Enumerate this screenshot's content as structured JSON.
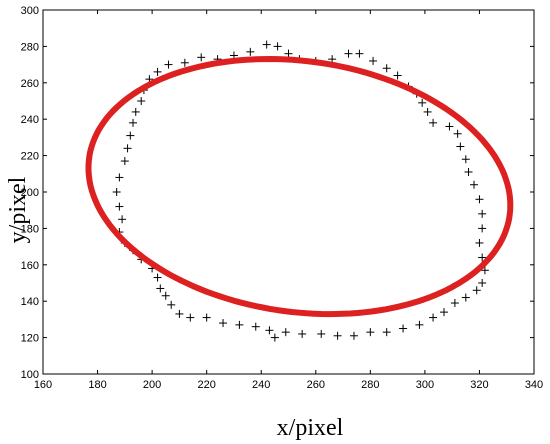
{
  "chart_data": {
    "type": "scatter",
    "title": "",
    "xlabel": "x/pixel",
    "ylabel": "y/pixel",
    "xlim": [
      160,
      340
    ],
    "ylim": [
      100,
      300
    ],
    "xticks": [
      160,
      180,
      200,
      220,
      240,
      260,
      280,
      300,
      320,
      340
    ],
    "yticks": [
      100,
      120,
      140,
      160,
      180,
      200,
      220,
      240,
      260,
      280,
      300
    ],
    "grid": false,
    "series": [
      {
        "marker": "+",
        "color": "#000000",
        "points": [
          [
            188,
            208
          ],
          [
            187,
            200
          ],
          [
            188,
            192
          ],
          [
            189,
            185
          ],
          [
            188,
            178
          ],
          [
            190,
            172
          ],
          [
            193,
            168
          ],
          [
            196,
            163
          ],
          [
            200,
            158
          ],
          [
            202,
            153
          ],
          [
            203,
            147
          ],
          [
            205,
            143
          ],
          [
            207,
            138
          ],
          [
            210,
            133
          ],
          [
            214,
            131
          ],
          [
            220,
            131
          ],
          [
            226,
            128
          ],
          [
            232,
            127
          ],
          [
            238,
            126
          ],
          [
            243,
            124
          ],
          [
            245,
            120
          ],
          [
            249,
            123
          ],
          [
            255,
            122
          ],
          [
            262,
            122
          ],
          [
            268,
            121
          ],
          [
            274,
            121
          ],
          [
            280,
            123
          ],
          [
            286,
            123
          ],
          [
            292,
            125
          ],
          [
            298,
            127
          ],
          [
            303,
            131
          ],
          [
            307,
            134
          ],
          [
            311,
            139
          ],
          [
            315,
            142
          ],
          [
            319,
            146
          ],
          [
            321,
            150
          ],
          [
            322,
            157
          ],
          [
            321,
            164
          ],
          [
            320,
            172
          ],
          [
            321,
            180
          ],
          [
            321,
            188
          ],
          [
            320,
            196
          ],
          [
            318,
            204
          ],
          [
            316,
            211
          ],
          [
            315,
            218
          ],
          [
            313,
            225
          ],
          [
            312,
            232
          ],
          [
            309,
            236
          ],
          [
            303,
            238
          ],
          [
            301,
            244
          ],
          [
            299,
            249
          ],
          [
            297,
            254
          ],
          [
            294,
            258
          ],
          [
            290,
            264
          ],
          [
            286,
            268
          ],
          [
            281,
            272
          ],
          [
            276,
            276
          ],
          [
            272,
            276
          ],
          [
            266,
            273
          ],
          [
            260,
            272
          ],
          [
            254,
            273
          ],
          [
            250,
            276
          ],
          [
            246,
            280
          ],
          [
            242,
            281
          ],
          [
            236,
            277
          ],
          [
            230,
            275
          ],
          [
            224,
            273
          ],
          [
            218,
            274
          ],
          [
            212,
            271
          ],
          [
            206,
            270
          ],
          [
            202,
            266
          ],
          [
            199,
            262
          ],
          [
            197,
            256
          ],
          [
            196,
            250
          ],
          [
            194,
            244
          ],
          [
            193,
            238
          ],
          [
            192,
            231
          ],
          [
            191,
            224
          ],
          [
            190,
            217
          ]
        ]
      },
      {
        "type": "ellipse-fit",
        "color": "#dd2020",
        "center": [
          254,
          203
        ],
        "semi_major": 80,
        "semi_minor": 67,
        "rotation_deg": -28
      }
    ]
  }
}
